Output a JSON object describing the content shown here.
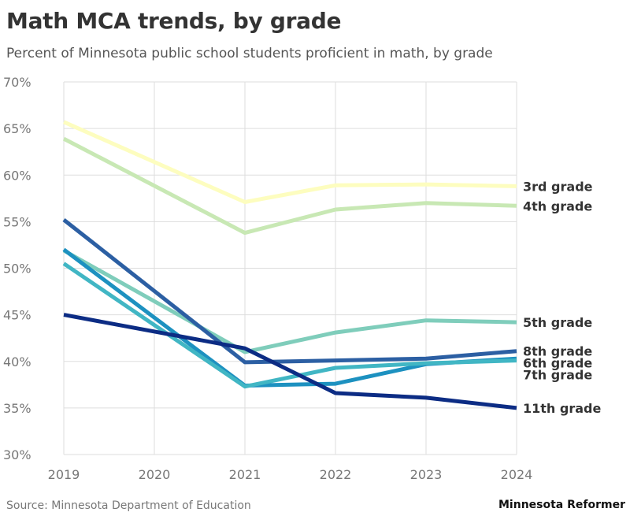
{
  "header": {
    "title": "Math MCA trends, by grade",
    "subtitle": "Percent of Minnesota public school students proficient in math, by grade"
  },
  "footer": {
    "source": "Source: Minnesota Department of Education",
    "brand": "Minnesota Reformer"
  },
  "chart_data": {
    "type": "line",
    "title": "Math MCA trends, by grade",
    "subtitle": "Percent of Minnesota public school students proficient in math, by grade",
    "xlabel": "",
    "ylabel": "",
    "x": [
      2019,
      2020,
      2021,
      2022,
      2023,
      2024
    ],
    "x_tick_labels": [
      "2019",
      "2020",
      "2021",
      "2022",
      "2023",
      "2024"
    ],
    "ylim": [
      30,
      70
    ],
    "y_ticks": [
      30,
      35,
      40,
      45,
      50,
      55,
      60,
      65,
      70
    ],
    "y_tick_labels": [
      "30%",
      "35%",
      "40%",
      "45%",
      "50%",
      "55%",
      "60%",
      "65%",
      "70%"
    ],
    "grid": true,
    "legend": "direct labels at right end of lines",
    "series": [
      {
        "name": "3rd grade",
        "color": "#fdfdbf",
        "values": [
          65.7,
          null,
          57.1,
          58.9,
          59.0,
          58.8
        ]
      },
      {
        "name": "4th grade",
        "color": "#c8e8b4",
        "values": [
          63.9,
          null,
          53.8,
          56.3,
          57.0,
          56.7
        ]
      },
      {
        "name": "5th grade",
        "color": "#7fcdbb",
        "values": [
          51.9,
          null,
          41.0,
          43.1,
          44.4,
          44.2
        ]
      },
      {
        "name": "8th grade",
        "color": "#2c5fa3",
        "values": [
          55.2,
          null,
          39.9,
          40.1,
          40.3,
          41.1
        ]
      },
      {
        "name": "6th grade",
        "color": "#1d91c0",
        "values": [
          52.0,
          null,
          37.4,
          37.6,
          39.7,
          40.3
        ]
      },
      {
        "name": "7th grade",
        "color": "#41b6c4",
        "values": [
          50.5,
          null,
          37.3,
          39.3,
          39.8,
          40.1
        ]
      },
      {
        "name": "11th grade",
        "color": "#0c2c84",
        "values": [
          45.0,
          null,
          41.4,
          36.6,
          36.1,
          35.0
        ]
      }
    ]
  }
}
